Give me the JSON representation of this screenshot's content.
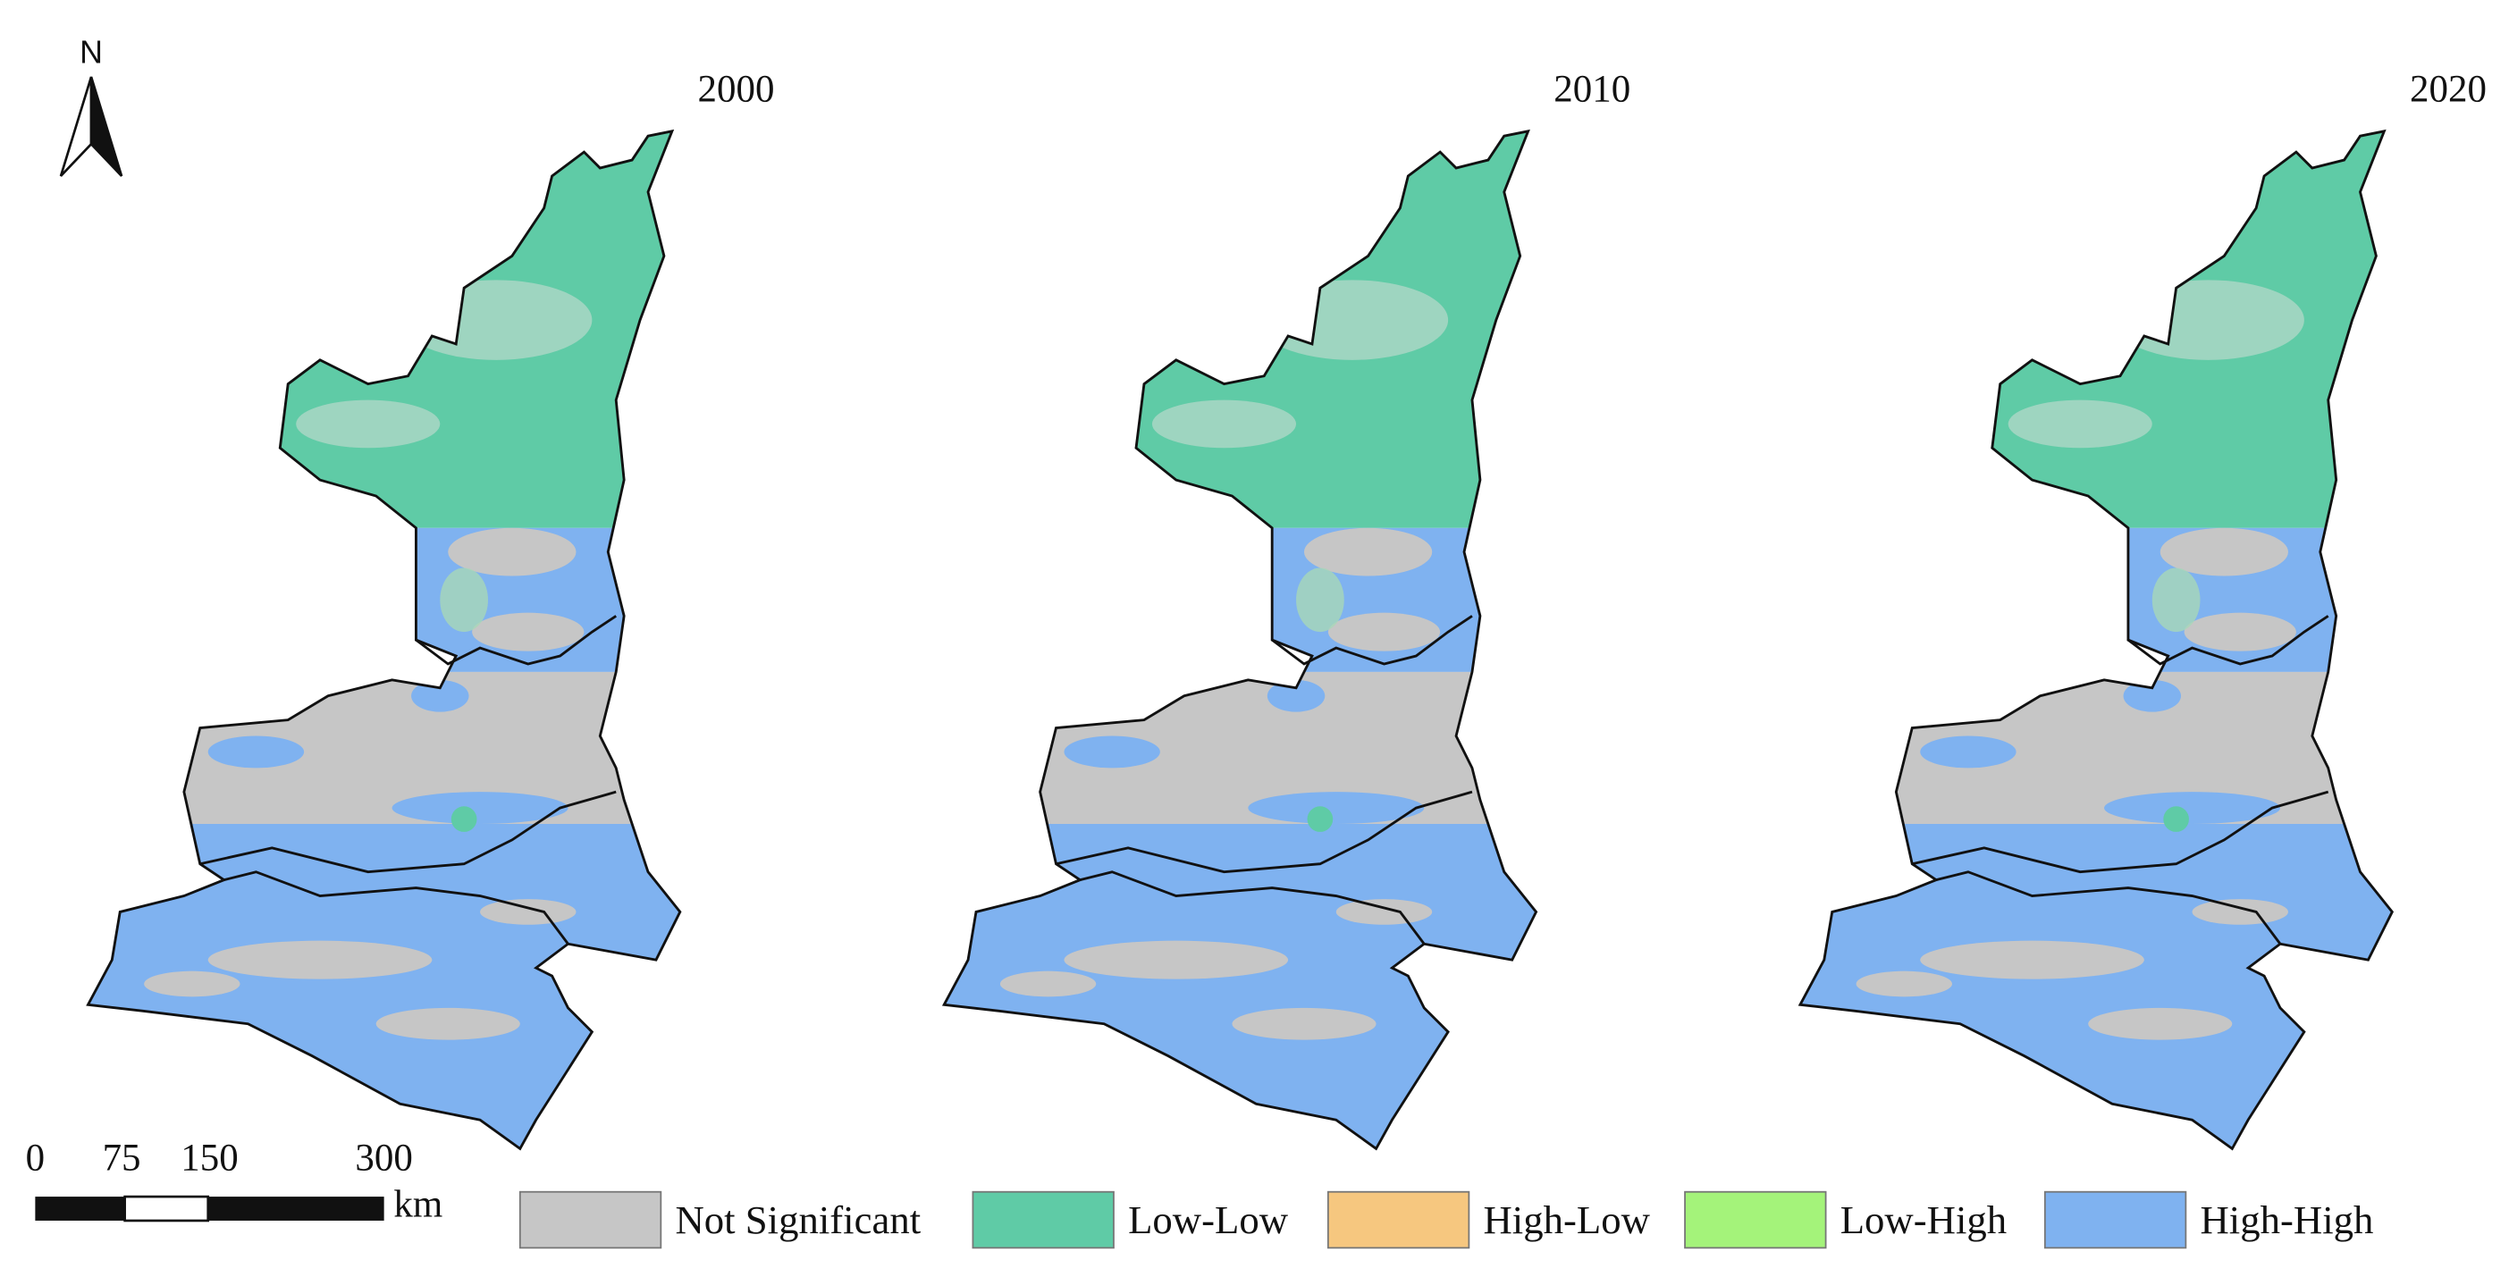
{
  "north": "N",
  "maps": [
    {
      "year": "2000"
    },
    {
      "year": "2010"
    },
    {
      "year": "2020"
    }
  ],
  "scale_bar": {
    "labels": [
      "0",
      "75",
      "150",
      "300"
    ],
    "unit": "km"
  },
  "legend": [
    {
      "label": "Not Significant",
      "color": "#c6c6c6"
    },
    {
      "label": "Low-Low",
      "color": "#5fcba6"
    },
    {
      "label": "High-Low",
      "color": "#f6c77f"
    },
    {
      "label": "Low-High",
      "color": "#a4f37a"
    },
    {
      "label": "High-High",
      "color": "#7fb2f0"
    }
  ]
}
